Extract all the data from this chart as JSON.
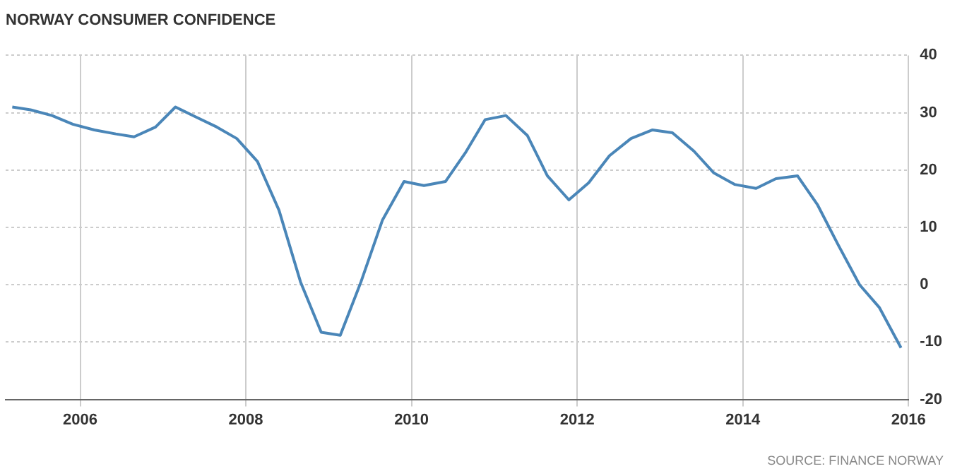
{
  "chart_data": {
    "type": "line",
    "title": "NORWAY CONSUMER CONFIDENCE",
    "annotations": [
      "SOURCE: FINANCE NORWAY"
    ],
    "x": [
      2005.18,
      2005.4,
      2005.66,
      2005.91,
      2006.17,
      2006.43,
      2006.65,
      2006.91,
      2007.15,
      2007.39,
      2007.65,
      2007.89,
      2008.14,
      2008.4,
      2008.66,
      2008.91,
      2009.14,
      2009.39,
      2009.65,
      2009.91,
      2010.15,
      2010.41,
      2010.65,
      2010.89,
      2011.14,
      2011.4,
      2011.64,
      2011.9,
      2012.14,
      2012.39,
      2012.65,
      2012.91,
      2013.15,
      2013.41,
      2013.65,
      2013.9,
      2014.16,
      2014.4,
      2014.66,
      2014.9,
      2015.15,
      2015.41,
      2015.65,
      2015.91
    ],
    "series": [
      {
        "color": "#4a86b8",
        "values": [
          31,
          30.5,
          29.5,
          28,
          27,
          26.3,
          25.8,
          27.5,
          31,
          29.3,
          27.5,
          25.5,
          21.5,
          13,
          0.5,
          -8.3,
          -8.8,
          0.5,
          11.3,
          18,
          17.3,
          18,
          23,
          28.8,
          29.5,
          26,
          19,
          14.8,
          17.8,
          22.5,
          25.5,
          27,
          26.5,
          23.3,
          19.5,
          17.5,
          16.8,
          18.5,
          19,
          14,
          7,
          0,
          -4,
          -11
        ]
      }
    ],
    "xlim": [
      2005.1,
      2016
    ],
    "xticks": [
      2006,
      2008,
      2010,
      2012,
      2014,
      2016
    ],
    "ylim": [
      -20,
      40
    ],
    "yticks": [
      -20,
      -10,
      0,
      10,
      20,
      30,
      40
    ],
    "grid": true,
    "legend": false,
    "marker": "none",
    "line_style": "solid"
  }
}
